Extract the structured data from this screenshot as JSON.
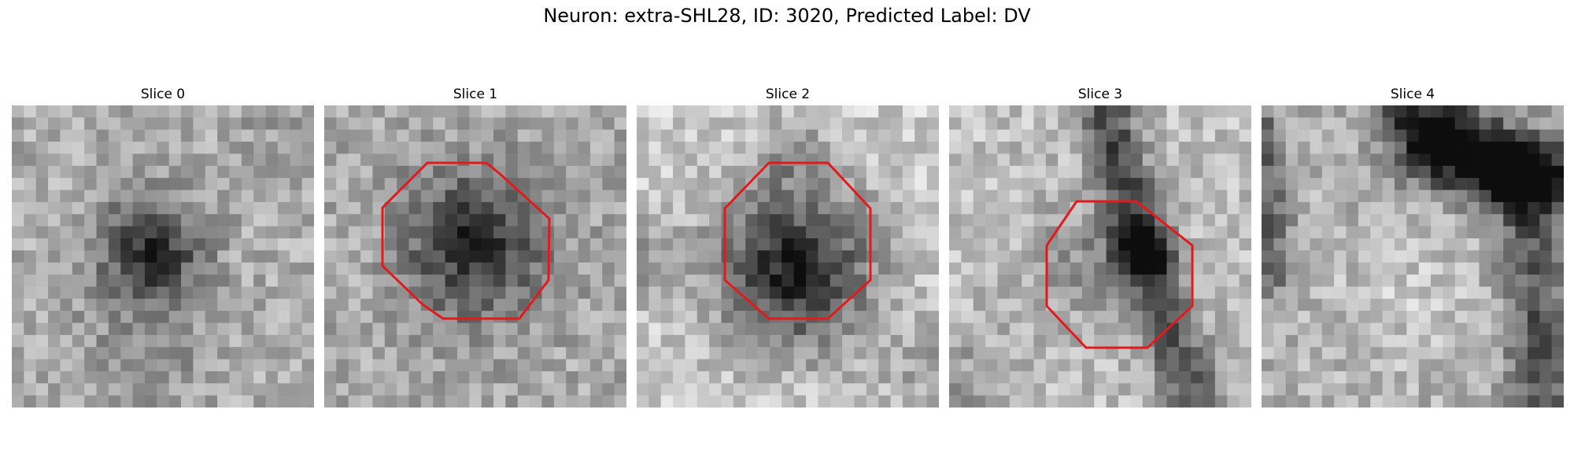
{
  "figure": {
    "title": "Neuron: extra-SHL28, ID: 3020, Predicted Label: DV"
  },
  "slices": [
    {
      "title": "Slice 0",
      "has_contour": false
    },
    {
      "title": "Slice 1",
      "has_contour": true
    },
    {
      "title": "Slice 2",
      "has_contour": true
    },
    {
      "title": "Slice 3",
      "has_contour": true
    },
    {
      "title": "Slice 4",
      "has_contour": false
    }
  ],
  "colors": {
    "contour": "#e31a1c",
    "background": "#ffffff"
  }
}
